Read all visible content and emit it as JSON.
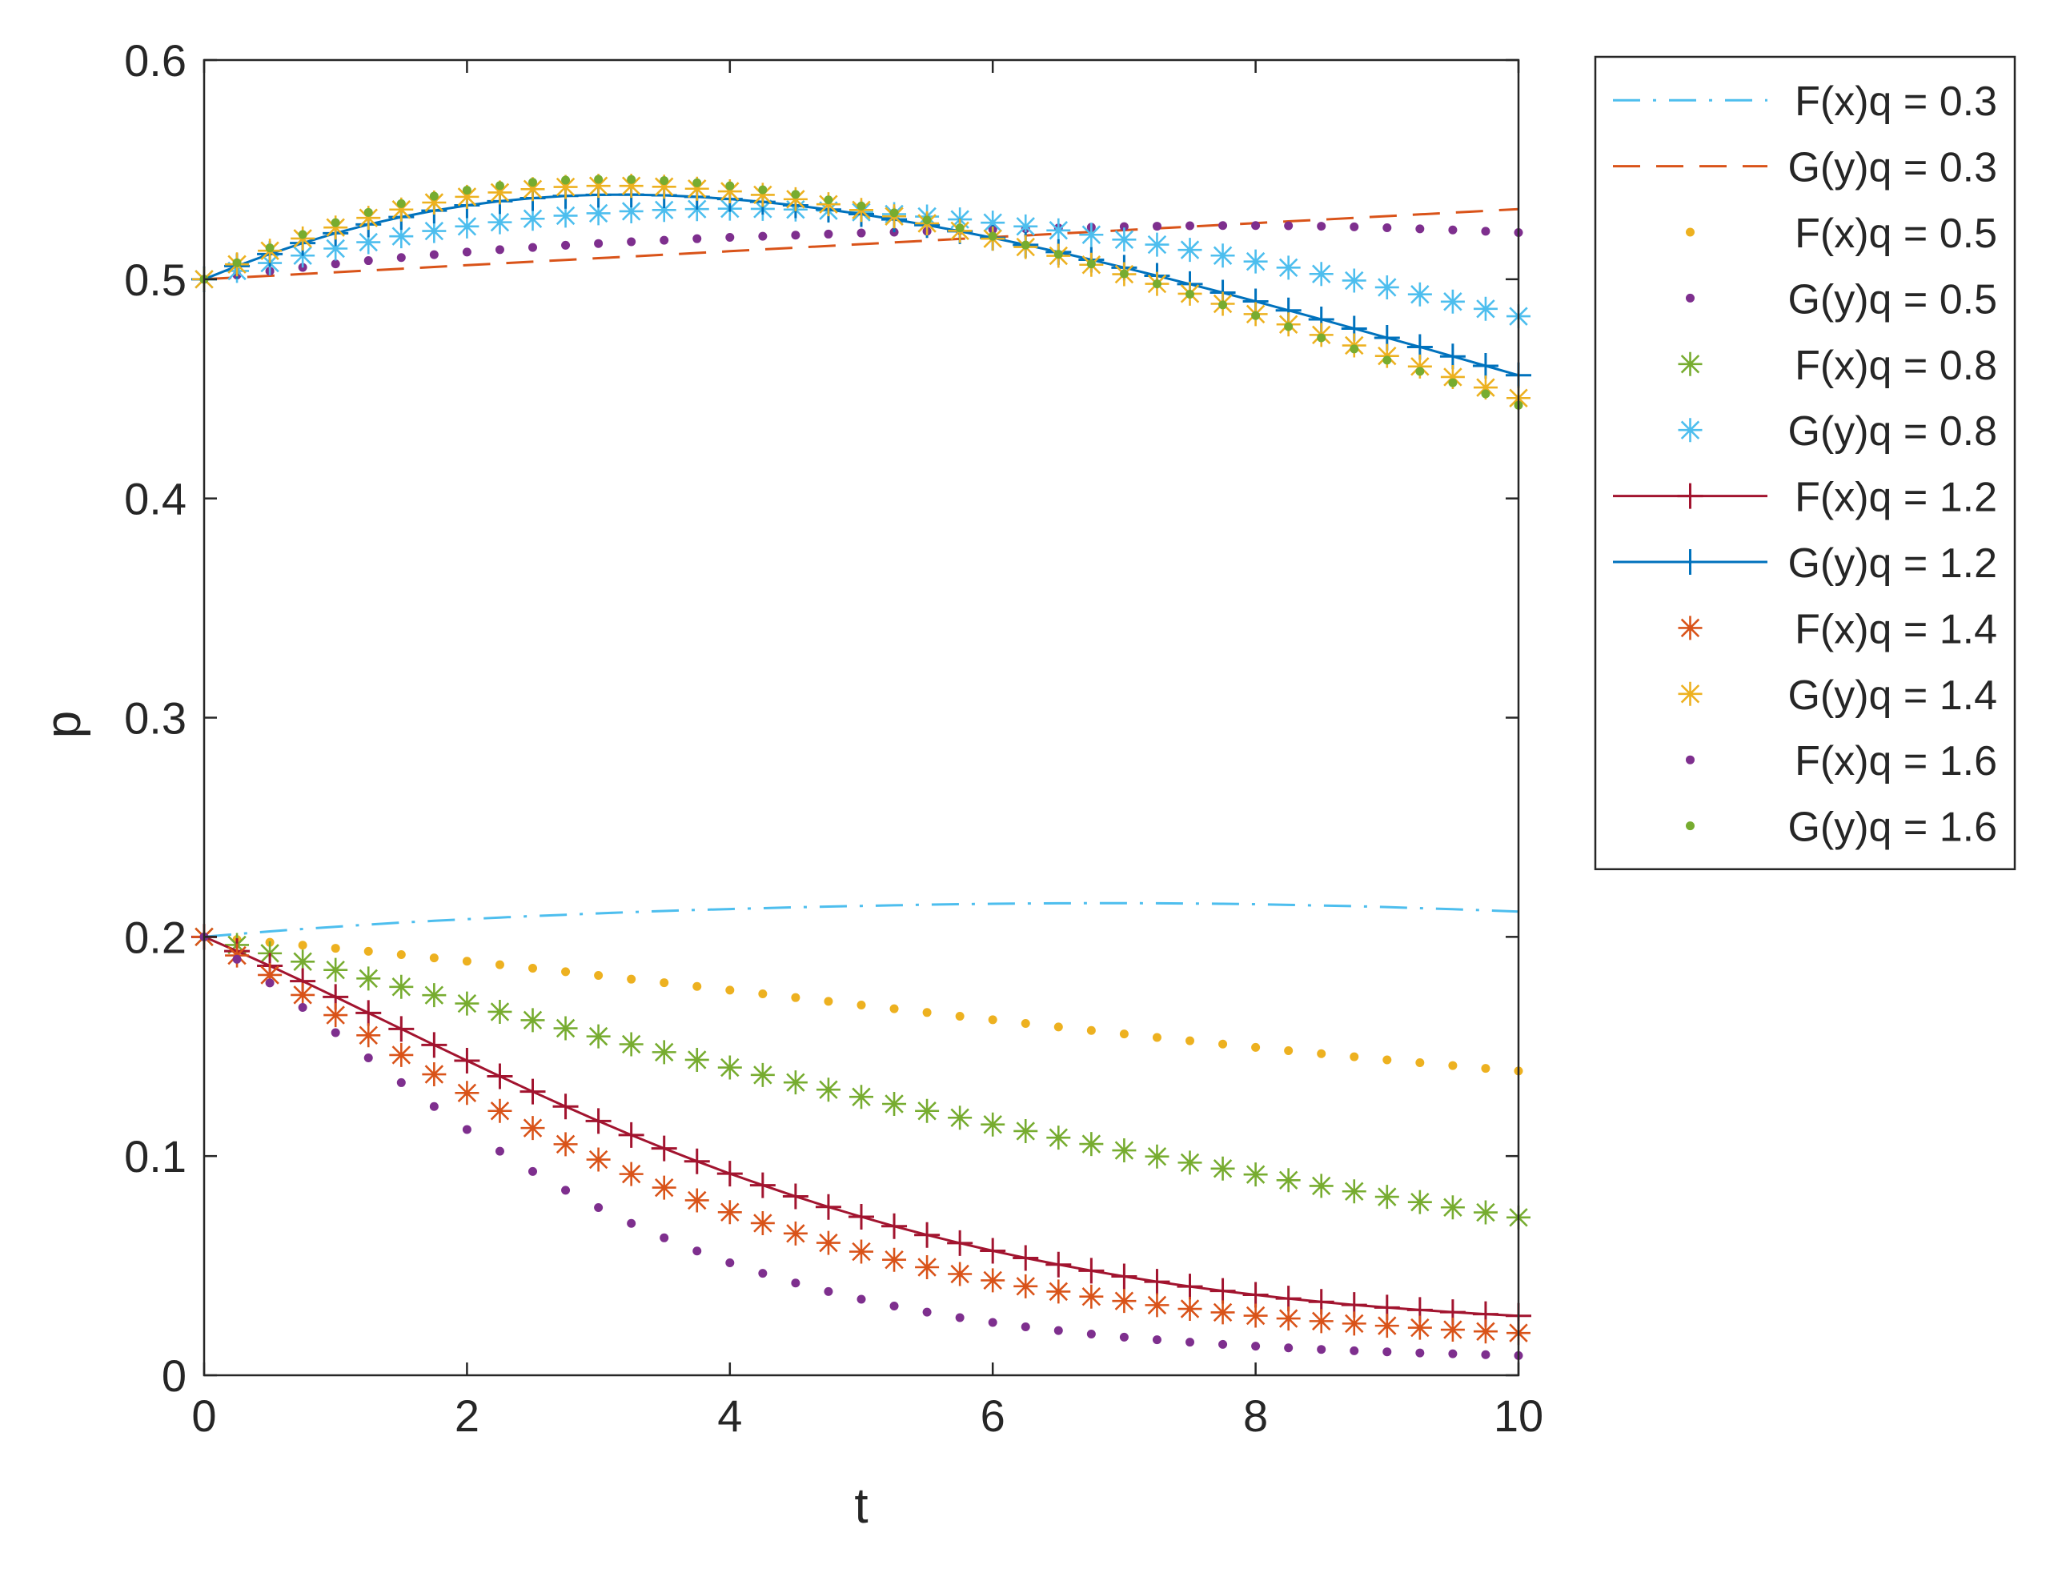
{
  "chart_data": {
    "type": "line",
    "title": "",
    "xlabel": "t",
    "ylabel": "p",
    "xlim": [
      0,
      10
    ],
    "ylim": [
      0,
      0.6
    ],
    "xticks": [
      "0",
      "2",
      "4",
      "6",
      "8",
      "10"
    ],
    "yticks": [
      "0",
      "0.1",
      "0.2",
      "0.3",
      "0.4",
      "0.5",
      "0.6"
    ],
    "grid": false,
    "legend_position": "outside-top-right",
    "x": [
      0,
      0.25,
      0.5,
      0.75,
      1,
      1.25,
      1.5,
      1.75,
      2,
      2.25,
      2.5,
      2.75,
      3,
      3.25,
      3.5,
      3.75,
      4,
      4.25,
      4.5,
      4.75,
      5,
      5.25,
      5.5,
      5.75,
      6,
      6.25,
      6.5,
      6.75,
      7,
      7.25,
      7.5,
      7.75,
      8,
      8.25,
      8.5,
      8.75,
      9,
      9.25,
      9.5,
      9.75,
      10
    ],
    "series": [
      {
        "name": "F(x)q = 0.3",
        "color": "#4DBEEE",
        "style": "dash-dot",
        "marker": "none",
        "values": [
          0.2,
          0.2013,
          0.2025,
          0.2036,
          0.2046,
          0.2056,
          0.2065,
          0.2073,
          0.2081,
          0.2088,
          0.2095,
          0.2101,
          0.2107,
          0.2113,
          0.2118,
          0.2123,
          0.2127,
          0.2131,
          0.2135,
          0.2138,
          0.2141,
          0.2144,
          0.2147,
          0.2149,
          0.2151,
          0.2152,
          0.2153,
          0.2154,
          0.2154,
          0.2153,
          0.2152,
          0.2151,
          0.2149,
          0.2146,
          0.2143,
          0.214,
          0.2136,
          0.2131,
          0.2126,
          0.2121,
          0.2115
        ]
      },
      {
        "name": "G(y)q = 0.3",
        "color": "#D95319",
        "style": "dash",
        "marker": "none",
        "values": [
          0.5,
          0.5008,
          0.5016,
          0.5024,
          0.5032,
          0.504,
          0.5048,
          0.5056,
          0.5064,
          0.5072,
          0.508,
          0.5088,
          0.5096,
          0.5104,
          0.5112,
          0.512,
          0.5128,
          0.5136,
          0.5144,
          0.5152,
          0.516,
          0.5168,
          0.5176,
          0.5184,
          0.5192,
          0.52,
          0.5208,
          0.5216,
          0.5224,
          0.5232,
          0.524,
          0.5248,
          0.5256,
          0.5264,
          0.5272,
          0.528,
          0.5288,
          0.5296,
          0.5304,
          0.5312,
          0.532
        ]
      },
      {
        "name": "F(x)q = 0.5",
        "color": "#EDB120",
        "style": "none",
        "marker": "dot",
        "values": [
          0.2,
          0.1988,
          0.1975,
          0.1962,
          0.1948,
          0.1934,
          0.1919,
          0.1904,
          0.1889,
          0.1873,
          0.1857,
          0.1841,
          0.1824,
          0.1807,
          0.1791,
          0.1774,
          0.1757,
          0.174,
          0.1723,
          0.1706,
          0.1689,
          0.1672,
          0.1655,
          0.1638,
          0.1622,
          0.1605,
          0.1589,
          0.1573,
          0.1557,
          0.1541,
          0.1526,
          0.1511,
          0.1496,
          0.1481,
          0.1467,
          0.1453,
          0.1439,
          0.1426,
          0.1413,
          0.14,
          0.1388
        ]
      },
      {
        "name": "G(y)q = 0.5",
        "color": "#7E2F8E",
        "style": "none",
        "marker": "dot",
        "values": [
          0.5,
          0.5019,
          0.5037,
          0.5054,
          0.507,
          0.5085,
          0.5099,
          0.5112,
          0.5124,
          0.5135,
          0.5145,
          0.5155,
          0.5163,
          0.5171,
          0.5178,
          0.5185,
          0.5191,
          0.5196,
          0.5201,
          0.5206,
          0.5211,
          0.5215,
          0.5219,
          0.5223,
          0.5227,
          0.5231,
          0.5234,
          0.5237,
          0.524,
          0.5242,
          0.5244,
          0.5245,
          0.5245,
          0.5244,
          0.5242,
          0.5239,
          0.5235,
          0.523,
          0.5225,
          0.5219,
          0.5213
        ]
      },
      {
        "name": "F(x)q = 0.8",
        "color": "#77AC30",
        "style": "none",
        "marker": "star",
        "values": [
          0.2,
          0.1963,
          0.1925,
          0.1887,
          0.1849,
          0.181,
          0.1772,
          0.1734,
          0.1696,
          0.1658,
          0.162,
          0.1583,
          0.1546,
          0.151,
          0.1474,
          0.1439,
          0.1404,
          0.137,
          0.1336,
          0.1303,
          0.127,
          0.1238,
          0.1206,
          0.1175,
          0.1144,
          0.1114,
          0.1084,
          0.1055,
          0.1026,
          0.0998,
          0.097,
          0.0943,
          0.0916,
          0.089,
          0.0864,
          0.0839,
          0.0814,
          0.079,
          0.0766,
          0.0743,
          0.072
        ]
      },
      {
        "name": "G(y)q = 0.8",
        "color": "#4DBEEE",
        "style": "none",
        "marker": "star",
        "values": [
          0.5,
          0.5038,
          0.5074,
          0.5108,
          0.514,
          0.5169,
          0.5196,
          0.522,
          0.5241,
          0.526,
          0.5276,
          0.529,
          0.5301,
          0.531,
          0.5316,
          0.532,
          0.5322,
          0.5321,
          0.5318,
          0.5313,
          0.5306,
          0.5297,
          0.5286,
          0.5273,
          0.5258,
          0.5241,
          0.5223,
          0.5203,
          0.5181,
          0.5158,
          0.5134,
          0.5108,
          0.5081,
          0.5053,
          0.5024,
          0.4994,
          0.4963,
          0.4931,
          0.4898,
          0.4865,
          0.4831
        ]
      },
      {
        "name": "F(x)q = 1.2",
        "color": "#A2142F",
        "style": "solid",
        "marker": "plus",
        "values": [
          0.2,
          0.1935,
          0.1868,
          0.1798,
          0.1726,
          0.1653,
          0.158,
          0.1507,
          0.1435,
          0.1364,
          0.1294,
          0.1226,
          0.116,
          0.1096,
          0.1035,
          0.0976,
          0.092,
          0.0867,
          0.0816,
          0.0768,
          0.0723,
          0.068,
          0.064,
          0.0603,
          0.0568,
          0.0535,
          0.0505,
          0.0477,
          0.0451,
          0.0427,
          0.0405,
          0.0385,
          0.0367,
          0.035,
          0.0335,
          0.0321,
          0.0309,
          0.0298,
          0.0288,
          0.0279,
          0.0271
        ]
      },
      {
        "name": "G(y)q = 1.2",
        "color": "#0072BD",
        "style": "solid",
        "marker": "plus",
        "values": [
          0.5,
          0.506,
          0.5115,
          0.5165,
          0.521,
          0.525,
          0.5284,
          0.5313,
          0.5337,
          0.5356,
          0.537,
          0.538,
          0.5385,
          0.5386,
          0.5383,
          0.5376,
          0.5366,
          0.5353,
          0.5337,
          0.5318,
          0.5297,
          0.5273,
          0.5247,
          0.5219,
          0.5189,
          0.5157,
          0.5124,
          0.5089,
          0.5053,
          0.5016,
          0.4978,
          0.4939,
          0.4899,
          0.4858,
          0.4817,
          0.4775,
          0.4733,
          0.4691,
          0.4648,
          0.4605,
          0.4562
        ]
      },
      {
        "name": "F(x)q = 1.4",
        "color": "#D95319",
        "style": "none",
        "marker": "star",
        "values": [
          0.2,
          0.1915,
          0.1826,
          0.1735,
          0.1643,
          0.1551,
          0.1461,
          0.1373,
          0.1288,
          0.1206,
          0.1128,
          0.1054,
          0.0984,
          0.0918,
          0.0856,
          0.0798,
          0.0744,
          0.0694,
          0.0647,
          0.0604,
          0.0564,
          0.0527,
          0.0493,
          0.0462,
          0.0433,
          0.0406,
          0.0382,
          0.0359,
          0.0339,
          0.032,
          0.0303,
          0.0287,
          0.0272,
          0.0259,
          0.0247,
          0.0236,
          0.0226,
          0.0217,
          0.0208,
          0.02,
          0.0193
        ]
      },
      {
        "name": "G(y)q = 1.4",
        "color": "#EDB120",
        "style": "none",
        "marker": "star",
        "values": [
          0.5,
          0.5068,
          0.513,
          0.5186,
          0.5236,
          0.528,
          0.5318,
          0.535,
          0.5376,
          0.5396,
          0.5411,
          0.5421,
          0.5426,
          0.5426,
          0.5422,
          0.5413,
          0.5401,
          0.5385,
          0.5365,
          0.5342,
          0.5316,
          0.5287,
          0.5255,
          0.5221,
          0.5185,
          0.5147,
          0.5107,
          0.5066,
          0.5023,
          0.4979,
          0.4934,
          0.4888,
          0.4841,
          0.4794,
          0.4746,
          0.4698,
          0.465,
          0.4602,
          0.4554,
          0.4506,
          0.4458
        ]
      },
      {
        "name": "F(x)q = 1.6",
        "color": "#7E2F8E",
        "style": "none",
        "marker": "dot",
        "values": [
          0.2,
          0.1898,
          0.179,
          0.1678,
          0.1563,
          0.1448,
          0.1335,
          0.1226,
          0.1121,
          0.1022,
          0.093,
          0.0844,
          0.0765,
          0.0693,
          0.0627,
          0.0567,
          0.0513,
          0.0465,
          0.0421,
          0.0382,
          0.0347,
          0.0316,
          0.0288,
          0.0263,
          0.0241,
          0.0221,
          0.0204,
          0.0188,
          0.0174,
          0.0162,
          0.0151,
          0.0141,
          0.0133,
          0.0125,
          0.0118,
          0.0112,
          0.0107,
          0.0102,
          0.0098,
          0.0094,
          0.009
        ]
      },
      {
        "name": "G(y)q = 1.6",
        "color": "#77AC30",
        "style": "none",
        "marker": "dot",
        "values": [
          0.5,
          0.5075,
          0.5143,
          0.5204,
          0.5258,
          0.5305,
          0.5345,
          0.5379,
          0.5406,
          0.5427,
          0.5442,
          0.5452,
          0.5456,
          0.5455,
          0.545,
          0.544,
          0.5426,
          0.5408,
          0.5387,
          0.5362,
          0.5334,
          0.5303,
          0.527,
          0.5234,
          0.5196,
          0.5156,
          0.5114,
          0.507,
          0.5025,
          0.4979,
          0.4932,
          0.4883,
          0.4834,
          0.4784,
          0.4733,
          0.4682,
          0.4631,
          0.458,
          0.4528,
          0.4477,
          0.4425
        ]
      }
    ]
  }
}
